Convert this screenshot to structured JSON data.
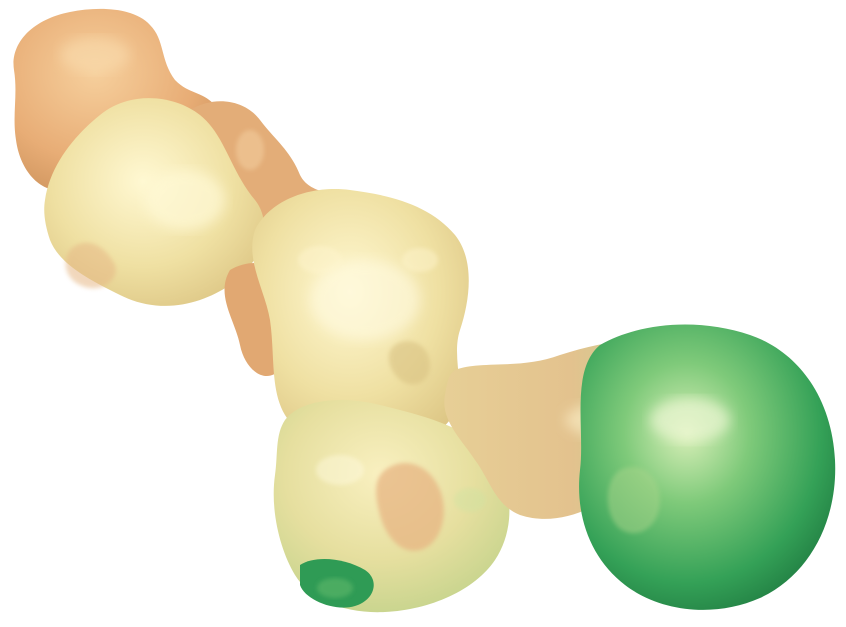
{
  "scene": {
    "subject": "molecular-surface",
    "background": "#ffffff",
    "palette": {
      "tan": "#e9b07a",
      "tan_light": "#f2c994",
      "cream": "#efe3a6",
      "cream_light": "#fbf4c8",
      "pale_green": "#c9dc9a",
      "mid_green": "#6cbf72",
      "deep_green": "#2e9a52",
      "shadow": "#b88a55"
    }
  }
}
